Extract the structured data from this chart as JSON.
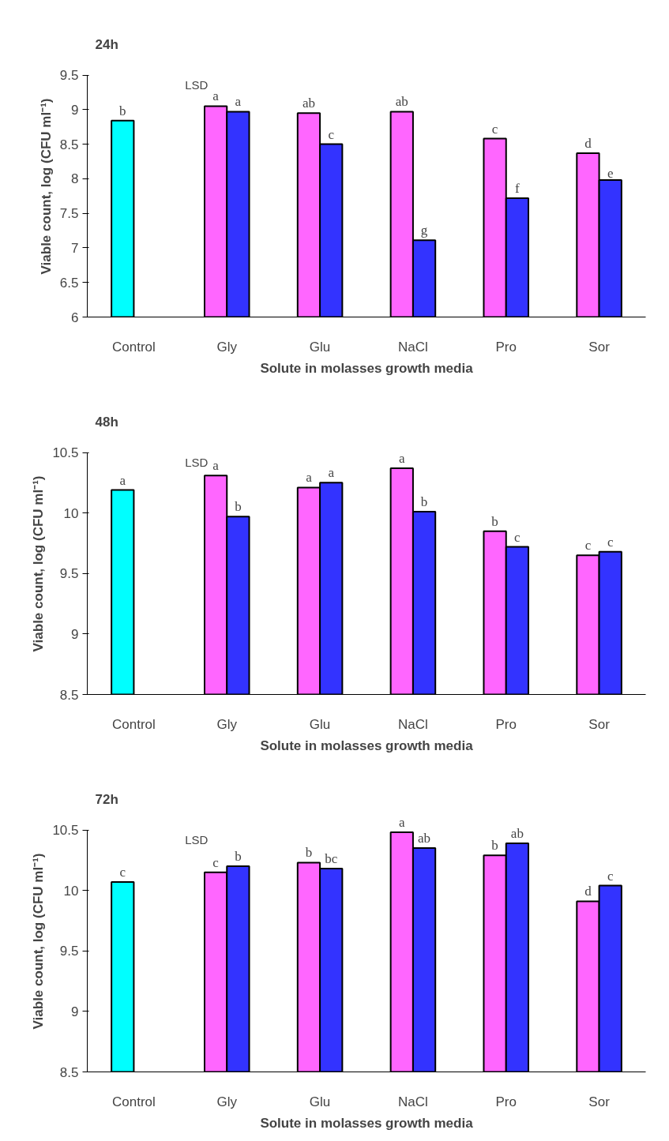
{
  "chart_data": [
    {
      "type": "bar",
      "title": "24h",
      "xlabel": "Solute in molasses growth media",
      "ylabel": "Viable count, log (CFU ml⁻¹)",
      "categories": [
        "Control",
        "Gly",
        "Glu",
        "NaCl",
        "Pro",
        "Sor"
      ],
      "ylim": [
        6,
        9.5
      ],
      "yticks": [
        6,
        6.5,
        7,
        7.5,
        8,
        8.5,
        9,
        9.5
      ],
      "grid": false,
      "series": [
        {
          "colors": [
            "#00ffff",
            "#ff66ff",
            "#ff66ff",
            "#ff66ff",
            "#ff66ff",
            "#ff66ff"
          ],
          "values": [
            8.84,
            9.05,
            8.95,
            8.97,
            8.58,
            8.37
          ],
          "value_labels": [
            "b",
            "a",
            "ab",
            "ab",
            "c",
            "d"
          ]
        },
        {
          "color": "#3333ff",
          "values": [
            null,
            8.97,
            8.5,
            7.11,
            7.72,
            7.98
          ],
          "value_labels": [
            null,
            "a",
            "c",
            "g",
            "f",
            "e"
          ]
        }
      ],
      "annotations": [
        "LSD"
      ]
    },
    {
      "type": "bar",
      "title": "48h",
      "xlabel": "Solute in molasses growth media",
      "ylabel": "Viable count, log (CFU ml⁻¹)",
      "categories": [
        "Control",
        "Gly",
        "Glu",
        "NaCl",
        "Pro",
        "Sor"
      ],
      "ylim": [
        8.5,
        10.5
      ],
      "yticks": [
        8.5,
        9,
        9.5,
        10,
        10.5
      ],
      "grid": false,
      "series": [
        {
          "colors": [
            "#00ffff",
            "#ff66ff",
            "#ff66ff",
            "#ff66ff",
            "#ff66ff",
            "#ff66ff"
          ],
          "values": [
            10.19,
            10.31,
            10.21,
            10.37,
            9.85,
            9.65
          ],
          "value_labels": [
            "a",
            "a",
            "a",
            "a",
            "b",
            "c"
          ]
        },
        {
          "color": "#3333ff",
          "values": [
            null,
            9.97,
            10.25,
            10.01,
            9.72,
            9.68
          ],
          "value_labels": [
            null,
            "b",
            "a",
            "b",
            "c",
            "c"
          ]
        }
      ],
      "annotations": [
        "LSD"
      ]
    },
    {
      "type": "bar",
      "title": "72h",
      "xlabel": "Solute in molasses growth media",
      "ylabel": "Viable count, log (CFU ml⁻¹)",
      "categories": [
        "Control",
        "Gly",
        "Glu",
        "NaCl",
        "Pro",
        "Sor"
      ],
      "ylim": [
        8.5,
        10.5
      ],
      "yticks": [
        8.5,
        9,
        9.5,
        10,
        10.5
      ],
      "grid": false,
      "series": [
        {
          "colors": [
            "#00ffff",
            "#ff66ff",
            "#ff66ff",
            "#ff66ff",
            "#ff66ff",
            "#ff66ff"
          ],
          "values": [
            10.07,
            10.15,
            10.23,
            10.48,
            10.29,
            9.91
          ],
          "value_labels": [
            "c",
            "c",
            "b",
            "a",
            "b",
            "d"
          ]
        },
        {
          "color": "#3333ff",
          "values": [
            null,
            10.2,
            10.18,
            10.35,
            10.39,
            10.04
          ],
          "value_labels": [
            null,
            "b",
            "bc",
            "ab",
            "ab",
            "c"
          ]
        }
      ],
      "annotations": [
        "LSD"
      ]
    }
  ]
}
